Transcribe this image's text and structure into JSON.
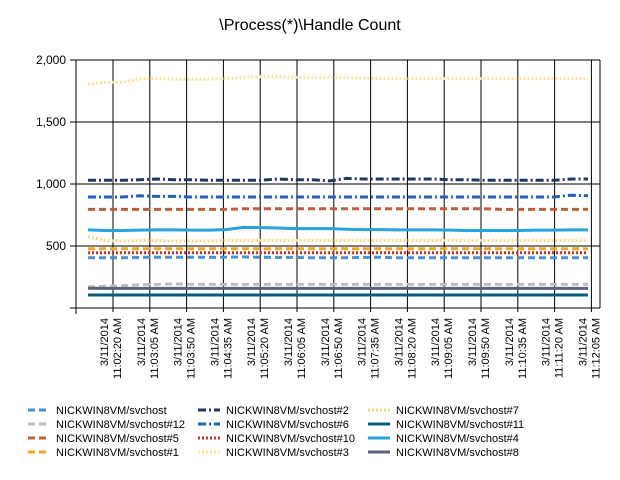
{
  "chart_data": {
    "type": "line",
    "title": "\\Process(*)\\Handle Count",
    "ylim": [
      0,
      2000
    ],
    "y_ticks": [
      "2,000",
      "1,500",
      "1,000",
      "500"
    ],
    "y_tick_values": [
      2000,
      1500,
      1000,
      500
    ],
    "grid": true,
    "legend_position": "bottom",
    "x_tick_labels": [
      {
        "date": "3/11/2014",
        "time": "11:02:20 AM"
      },
      {
        "date": "3/11/2014",
        "time": "11:03:05 AM"
      },
      {
        "date": "3/11/2014",
        "time": "11:03:50 AM"
      },
      {
        "date": "3/11/2014",
        "time": "11:04:35 AM"
      },
      {
        "date": "3/11/2014",
        "time": "11:05:20 AM"
      },
      {
        "date": "3/11/2014",
        "time": "11:06:05 AM"
      },
      {
        "date": "3/11/2014",
        "time": "11:06:50 AM"
      },
      {
        "date": "3/11/2014",
        "time": "11:07:35 AM"
      },
      {
        "date": "3/11/2014",
        "time": "11:08:20 AM"
      },
      {
        "date": "3/11/2014",
        "time": "11:09:05 AM"
      },
      {
        "date": "3/11/2014",
        "time": "11:09:50 AM"
      },
      {
        "date": "3/11/2014",
        "time": "11:10:35 AM"
      },
      {
        "date": "3/11/2014",
        "time": "11:11:20 AM"
      },
      {
        "date": "3/11/2014",
        "time": "11:12:05 AM"
      }
    ],
    "series": [
      {
        "name": "NICKWIN8VM/svchost",
        "color": "#4a90d9",
        "dash": "dash",
        "values": [
          405,
          405,
          405,
          408,
          410,
          410,
          410,
          408,
          410,
          412,
          410,
          408,
          408,
          405,
          405,
          405,
          408,
          410,
          405,
          405,
          405,
          405,
          405,
          405,
          405,
          405,
          405,
          405,
          405,
          405
        ]
      },
      {
        "name": "NICKWIN8VM/svchost#12",
        "color": "#bdbdbd",
        "dash": "dash",
        "values": [
          170,
          175,
          180,
          188,
          190,
          195,
          192,
          190,
          190,
          190,
          190,
          190,
          190,
          192,
          190,
          190,
          190,
          190,
          190,
          190,
          190,
          190,
          190,
          190,
          190,
          190,
          190,
          190,
          190,
          190
        ]
      },
      {
        "name": "NICKWIN8VM/svchost#5",
        "color": "#c0603a",
        "dash": "dash",
        "values": [
          795,
          795,
          795,
          795,
          795,
          795,
          795,
          795,
          795,
          800,
          800,
          800,
          800,
          800,
          800,
          800,
          800,
          800,
          800,
          800,
          800,
          800,
          800,
          800,
          795,
          795,
          795,
          795,
          795,
          795
        ]
      },
      {
        "name": "NICKWIN8VM/svchost#1",
        "color": "#f5a623",
        "dash": "dash",
        "values": [
          478,
          478,
          478,
          478,
          478,
          478,
          478,
          478,
          478,
          478,
          478,
          478,
          478,
          478,
          478,
          478,
          478,
          478,
          478,
          478,
          478,
          478,
          478,
          478,
          478,
          478,
          478,
          478,
          478,
          478
        ]
      },
      {
        "name": "NICKWIN8VM/svchost#2",
        "color": "#1f3864",
        "dash": "dashdot",
        "values": [
          1030,
          1030,
          1030,
          1035,
          1040,
          1035,
          1035,
          1030,
          1030,
          1030,
          1030,
          1040,
          1035,
          1035,
          1025,
          1045,
          1040,
          1040,
          1040,
          1040,
          1040,
          1035,
          1035,
          1030,
          1030,
          1030,
          1030,
          1030,
          1040,
          1040
        ]
      },
      {
        "name": "NICKWIN8VM/svchost#6",
        "color": "#1f5fbf",
        "dash": "dashdot",
        "values": [
          895,
          895,
          895,
          905,
          900,
          900,
          895,
          895,
          895,
          895,
          895,
          895,
          895,
          895,
          895,
          895,
          895,
          895,
          895,
          895,
          895,
          895,
          895,
          895,
          895,
          895,
          895,
          895,
          910,
          905
        ]
      },
      {
        "name": "NICKWIN8VM/svchost#10",
        "color": "#c0392b",
        "dash": "dot",
        "values": [
          445,
          445,
          445,
          445,
          445,
          445,
          445,
          445,
          445,
          445,
          445,
          445,
          445,
          445,
          445,
          445,
          445,
          445,
          445,
          445,
          445,
          445,
          445,
          445,
          445,
          445,
          445,
          445,
          445,
          445
        ]
      },
      {
        "name": "NICKWIN8VM/svchost#3",
        "color": "#fce49b",
        "dash": "dot",
        "values": [
          1805,
          1820,
          1820,
          1850,
          1850,
          1845,
          1845,
          1845,
          1850,
          1860,
          1865,
          1865,
          1860,
          1860,
          1860,
          1860,
          1855,
          1850,
          1850,
          1850,
          1850,
          1850,
          1850,
          1850,
          1850,
          1850,
          1850,
          1850,
          1850,
          1850
        ]
      },
      {
        "name": "NICKWIN8VM/svchost#7",
        "color": "#f8d98a",
        "dash": "dot",
        "values": [
          575,
          545,
          540,
          545,
          545,
          540,
          540,
          540,
          545,
          545,
          545,
          545,
          545,
          545,
          545,
          545,
          545,
          545,
          545,
          545,
          545,
          545,
          545,
          545,
          545,
          545,
          545,
          545,
          545,
          545
        ]
      },
      {
        "name": "NICKWIN8VM/svchost#11",
        "color": "#0b5c7a",
        "dash": "solid",
        "values": [
          105,
          105,
          105,
          105,
          105,
          105,
          105,
          105,
          105,
          105,
          105,
          105,
          105,
          105,
          105,
          105,
          105,
          105,
          105,
          105,
          105,
          105,
          105,
          105,
          105,
          105,
          105,
          105,
          105,
          105
        ]
      },
      {
        "name": "NICKWIN8VM/svchost#4",
        "color": "#27a3dd",
        "dash": "solid",
        "values": [
          630,
          625,
          625,
          628,
          630,
          630,
          628,
          628,
          632,
          650,
          648,
          645,
          640,
          640,
          640,
          635,
          632,
          632,
          630,
          630,
          630,
          628,
          625,
          625,
          625,
          625,
          628,
          628,
          630,
          630
        ]
      },
      {
        "name": "NICKWIN8VM/svchost#8",
        "color": "#5a6378",
        "dash": "solid",
        "values": [
          160,
          158,
          158,
          158,
          158,
          158,
          158,
          158,
          158,
          158,
          158,
          158,
          158,
          158,
          158,
          158,
          158,
          158,
          158,
          158,
          158,
          158,
          158,
          158,
          158,
          158,
          158,
          158,
          158,
          158
        ]
      }
    ]
  }
}
